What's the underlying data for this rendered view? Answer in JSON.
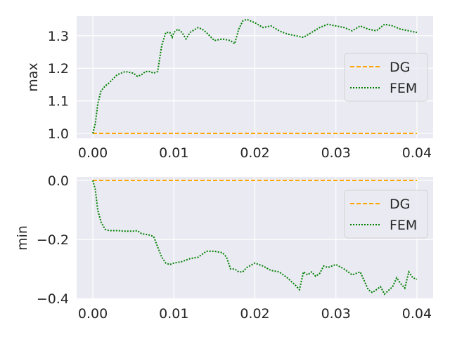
{
  "chart_data": [
    {
      "type": "line",
      "ylabel": "max",
      "xlim": [
        -0.002,
        0.042
      ],
      "ylim": [
        0.985,
        1.36
      ],
      "xticks": [
        0.0,
        0.01,
        0.02,
        0.03,
        0.04
      ],
      "xtick_labels": [
        "0.00",
        "0.01",
        "0.02",
        "0.03",
        "0.04"
      ],
      "yticks": [
        1.0,
        1.1,
        1.2,
        1.3
      ],
      "ytick_labels": [
        "1.0",
        "1.1",
        "1.2",
        "1.3"
      ],
      "grid": true,
      "legend_position": "center-right",
      "series": [
        {
          "name": "DG",
          "color": "#ffa500",
          "style": "dashed",
          "x": [
            0.0,
            0.04
          ],
          "y": [
            1.0,
            1.0
          ]
        },
        {
          "name": "FEM",
          "color": "#008000",
          "style": "dotted",
          "x": [
            0.0,
            0.0003,
            0.0006,
            0.001,
            0.0015,
            0.002,
            0.003,
            0.004,
            0.005,
            0.0055,
            0.006,
            0.0065,
            0.007,
            0.0075,
            0.008,
            0.0085,
            0.009,
            0.0095,
            0.0098,
            0.01,
            0.0105,
            0.011,
            0.0115,
            0.012,
            0.013,
            0.0135,
            0.014,
            0.015,
            0.016,
            0.017,
            0.0175,
            0.018,
            0.0185,
            0.019,
            0.0195,
            0.02,
            0.021,
            0.022,
            0.023,
            0.024,
            0.025,
            0.026,
            0.027,
            0.028,
            0.029,
            0.03,
            0.031,
            0.032,
            0.033,
            0.034,
            0.035,
            0.036,
            0.037,
            0.038,
            0.039,
            0.04
          ],
          "y": [
            1.0,
            1.03,
            1.09,
            1.13,
            1.145,
            1.155,
            1.18,
            1.19,
            1.185,
            1.175,
            1.18,
            1.19,
            1.19,
            1.185,
            1.19,
            1.27,
            1.31,
            1.31,
            1.295,
            1.31,
            1.32,
            1.31,
            1.29,
            1.31,
            1.325,
            1.32,
            1.31,
            1.285,
            1.29,
            1.285,
            1.275,
            1.32,
            1.345,
            1.35,
            1.345,
            1.34,
            1.325,
            1.33,
            1.315,
            1.305,
            1.3,
            1.295,
            1.31,
            1.325,
            1.335,
            1.33,
            1.325,
            1.315,
            1.33,
            1.32,
            1.315,
            1.335,
            1.33,
            1.32,
            1.315,
            1.31
          ]
        }
      ]
    },
    {
      "type": "line",
      "ylabel": "min",
      "xlim": [
        -0.002,
        0.042
      ],
      "ylim": [
        -0.402,
        0.012
      ],
      "xticks": [
        0.0,
        0.01,
        0.02,
        0.03,
        0.04
      ],
      "xtick_labels": [
        "0.00",
        "0.01",
        "0.02",
        "0.03",
        "0.04"
      ],
      "yticks": [
        0.0,
        -0.2,
        -0.4
      ],
      "ytick_labels": [
        "0.0",
        "−0.2",
        "−0.4"
      ],
      "grid": true,
      "legend_position": "center-right",
      "series": [
        {
          "name": "DG",
          "color": "#ffa500",
          "style": "dashed",
          "x": [
            0.0,
            0.04
          ],
          "y": [
            0.0,
            0.0
          ]
        },
        {
          "name": "FEM",
          "color": "#008000",
          "style": "dotted",
          "x": [
            0.0,
            0.0003,
            0.0006,
            0.001,
            0.0015,
            0.002,
            0.003,
            0.004,
            0.005,
            0.0055,
            0.006,
            0.007,
            0.0075,
            0.008,
            0.0085,
            0.009,
            0.0095,
            0.01,
            0.011,
            0.012,
            0.013,
            0.014,
            0.015,
            0.016,
            0.0165,
            0.017,
            0.0175,
            0.018,
            0.0185,
            0.019,
            0.02,
            0.021,
            0.022,
            0.023,
            0.024,
            0.025,
            0.0255,
            0.026,
            0.0265,
            0.027,
            0.0275,
            0.028,
            0.0285,
            0.029,
            0.03,
            0.031,
            0.032,
            0.033,
            0.034,
            0.0345,
            0.035,
            0.0355,
            0.036,
            0.037,
            0.0375,
            0.038,
            0.0385,
            0.039,
            0.0395,
            0.04
          ],
          "y": [
            0.0,
            -0.03,
            -0.1,
            -0.14,
            -0.165,
            -0.17,
            -0.17,
            -0.172,
            -0.172,
            -0.17,
            -0.18,
            -0.185,
            -0.19,
            -0.225,
            -0.26,
            -0.28,
            -0.285,
            -0.28,
            -0.275,
            -0.265,
            -0.26,
            -0.24,
            -0.24,
            -0.245,
            -0.26,
            -0.3,
            -0.3,
            -0.31,
            -0.31,
            -0.295,
            -0.28,
            -0.29,
            -0.305,
            -0.31,
            -0.33,
            -0.355,
            -0.37,
            -0.31,
            -0.32,
            -0.31,
            -0.325,
            -0.315,
            -0.29,
            -0.295,
            -0.285,
            -0.3,
            -0.32,
            -0.31,
            -0.37,
            -0.38,
            -0.37,
            -0.36,
            -0.385,
            -0.36,
            -0.33,
            -0.35,
            -0.365,
            -0.31,
            -0.33,
            -0.335
          ]
        }
      ]
    }
  ]
}
